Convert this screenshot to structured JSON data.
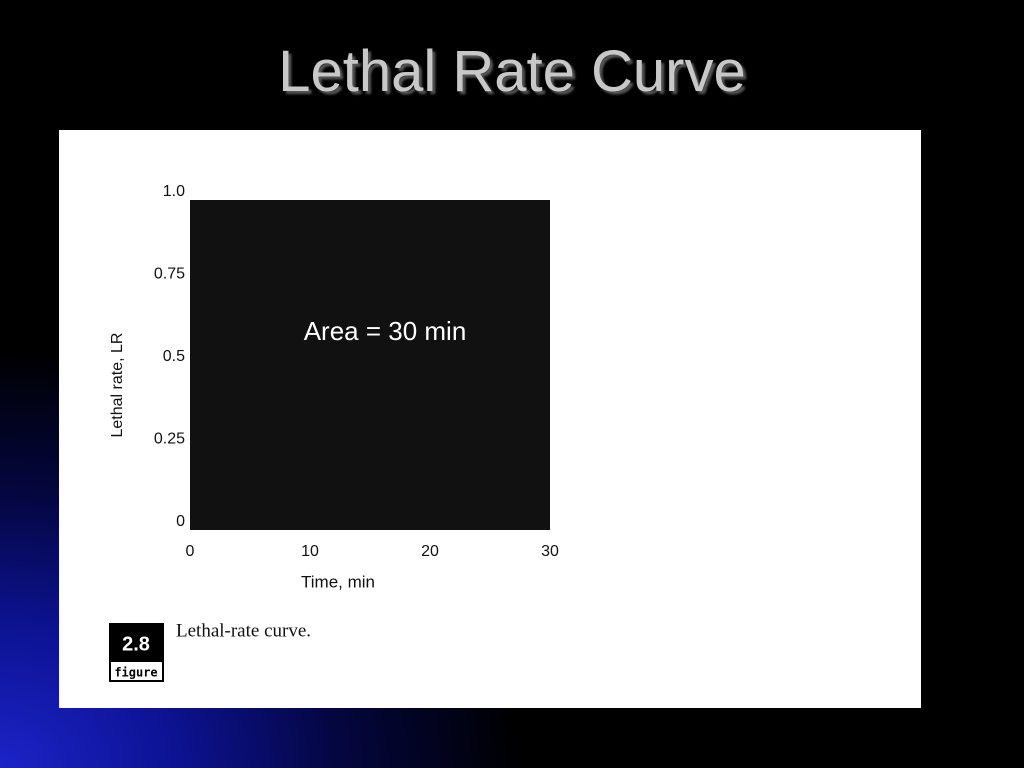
{
  "slide_title": "Lethal Rate Curve",
  "chart_data": {
    "type": "area",
    "x": [
      0,
      30
    ],
    "values": [
      1.0,
      1.0
    ],
    "color": "#111111",
    "xlim": [
      0,
      30
    ],
    "ylim": [
      0,
      1.0
    ],
    "xticks": [
      0,
      10,
      20,
      30
    ],
    "yticks": [
      0,
      0.25,
      0.5,
      0.75,
      {
        "value": 1.0,
        "label": "1.0"
      }
    ],
    "xlabel": "Time, min",
    "ylabel": "Lethal rate, LR",
    "annotation": "Area = 30 min",
    "grid": false
  },
  "figure": {
    "number": "2.8",
    "label": "figure",
    "caption": "Lethal-rate curve."
  }
}
